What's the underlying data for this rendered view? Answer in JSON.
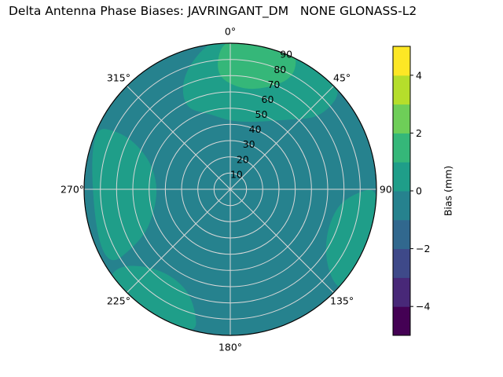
{
  "title": "Delta Antenna Phase Biases: JAVRINGANT_DM   NONE GLONASS-L2",
  "chart_data": {
    "type": "heatmap",
    "projection": "polar",
    "description": "Filled contour (viridis) polar plot of delta antenna phase bias versus azimuth (angular axis, clockwise from top) and zenith angle (radial axis 0-90).",
    "angular_axis": {
      "tick_degrees": [
        0,
        45,
        90,
        135,
        180,
        225,
        270,
        315
      ],
      "tick_labels": [
        "0°",
        "45°",
        "90°",
        "135°",
        "180°",
        "225°",
        "270°",
        "315°"
      ],
      "direction": "clockwise",
      "zero_location": "top"
    },
    "radial_axis": {
      "range": [
        0,
        90
      ],
      "tick_values": [
        10,
        20,
        30,
        40,
        50,
        60,
        70,
        80,
        90
      ],
      "tick_label_angle_deg": 22.5
    },
    "colorbar": {
      "label": "Bias (mm)",
      "range": [
        -5,
        5
      ],
      "tick_values": [
        -4,
        -2,
        0,
        2,
        4
      ],
      "tick_labels": [
        "−4",
        "−2",
        "0",
        "2",
        "4"
      ],
      "levels": [
        -5,
        -4,
        -3,
        -2,
        -1,
        0,
        1,
        2,
        3,
        4,
        5
      ],
      "colormap": "viridis",
      "band_colors": [
        "#440154",
        "#482878",
        "#3e4989",
        "#31688e",
        "#26828e",
        "#1f9e89",
        "#35b779",
        "#6ece58",
        "#b5de2b",
        "#fde725"
      ]
    },
    "bias_range_observed_mm": [
      -1,
      2
    ],
    "base_region": {
      "bias_range_mm": [
        -1,
        0
      ],
      "color": "#26828e"
    },
    "contour_regions": [
      {
        "name": "top",
        "bias_range_mm": [
          0,
          1
        ],
        "color": "#1f9e89",
        "points_az_zen": [
          [
            330,
            58
          ],
          [
            345,
            48
          ],
          [
            0,
            42
          ],
          [
            20,
            44
          ],
          [
            40,
            56
          ],
          [
            52,
            72
          ],
          [
            48,
            96
          ],
          [
            20,
            98
          ],
          [
            355,
            96
          ],
          [
            338,
            78
          ]
        ]
      },
      {
        "name": "top-core",
        "bias_range_mm": [
          1,
          2
        ],
        "color": "#35b779",
        "points_az_zen": [
          [
            358,
            96
          ],
          [
            352,
            72
          ],
          [
            5,
            62
          ],
          [
            20,
            66
          ],
          [
            30,
            80
          ],
          [
            25,
            96
          ]
        ]
      },
      {
        "name": "left",
        "bias_range_mm": [
          0,
          1
        ],
        "color": "#1f9e89",
        "points_az_zen": [
          [
            237,
            96
          ],
          [
            240,
            62
          ],
          [
            255,
            48
          ],
          [
            275,
            45
          ],
          [
            292,
            55
          ],
          [
            298,
            75
          ],
          [
            294,
            96
          ]
        ]
      },
      {
        "name": "bottom-left",
        "bias_range_mm": [
          0,
          1
        ],
        "color": "#1f9e89",
        "points_az_zen": [
          [
            192,
            96
          ],
          [
            198,
            72
          ],
          [
            212,
            64
          ],
          [
            228,
            70
          ],
          [
            236,
            85
          ],
          [
            232,
            96
          ]
        ]
      },
      {
        "name": "right",
        "bias_range_mm": [
          0,
          1
        ],
        "color": "#1f9e89",
        "points_az_zen": [
          [
            88,
            96
          ],
          [
            94,
            70
          ],
          [
            110,
            64
          ],
          [
            126,
            72
          ],
          [
            133,
            88
          ],
          [
            130,
            96
          ]
        ]
      }
    ],
    "grid_color": "#d8d8d8"
  }
}
